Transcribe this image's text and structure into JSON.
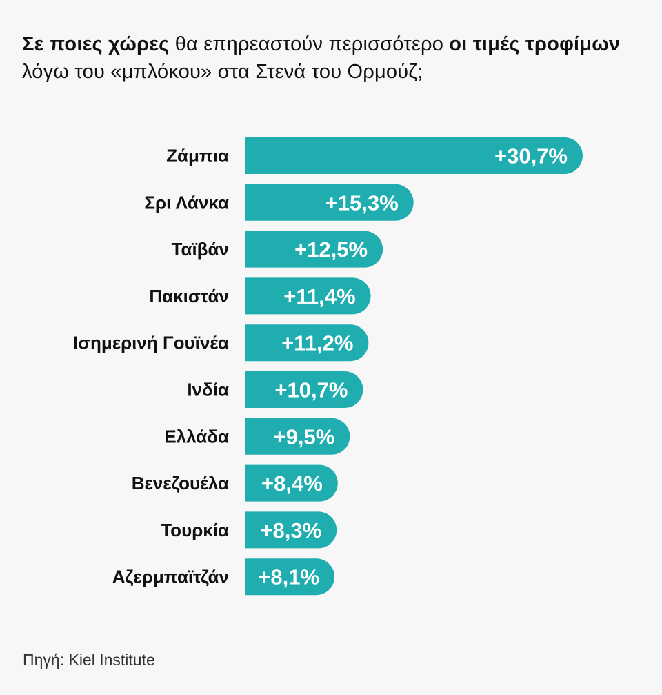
{
  "title": {
    "part1": "Σε ποιες χώρες",
    "part2": " θα επηρεαστούν περισσότερο ",
    "part3": "οι τιμές τροφίμων",
    "part4": " λόγω του «μπλόκου» στα Στενά του Ορμούζ;"
  },
  "source": "Πηγή: Kiel Institute",
  "colors": {
    "bar": "#1fadb0",
    "label_text": "#111111",
    "value_text": "#ffffff",
    "background": "#f7f7f7"
  },
  "chart_data": {
    "type": "bar",
    "orientation": "horizontal",
    "categories": [
      "Ζάμπια",
      "Σρι Λάνκα",
      "Ταϊβάν",
      "Πακιστάν",
      "Ισημερινή Γουϊνέα",
      "Ινδία",
      "Ελλάδα",
      "Βενεζουέλα",
      "Τουρκία",
      "Αζερμπαϊτζάν"
    ],
    "values": [
      30.7,
      15.3,
      12.5,
      11.4,
      11.2,
      10.7,
      9.5,
      8.4,
      8.3,
      8.1
    ],
    "value_labels": [
      "+30,7%",
      "+15,3%",
      "+12,5%",
      "+11,4%",
      "+11,2%",
      "+10,7%",
      "+9,5%",
      "+8,4%",
      "+8,3%",
      "+8,1%"
    ],
    "grid": false,
    "legend": "none"
  }
}
